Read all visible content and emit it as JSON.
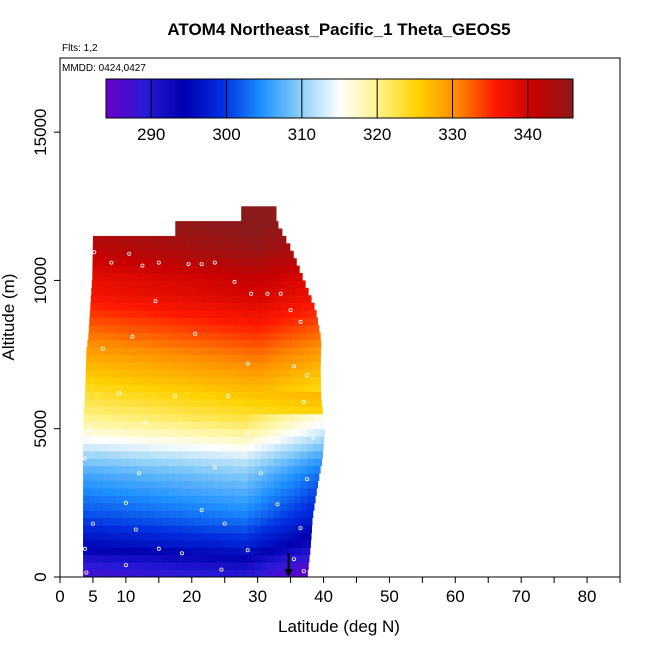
{
  "chart_data": {
    "type": "heatmap",
    "title": "ATOM4 Northeast_Pacific_1 Theta_GEOS5",
    "flights_text": "Flts: 1,2",
    "dates_text": "MMDD: 0424,0427",
    "xlabel": "Latitude (deg N)",
    "ylabel": "Altitude (m)",
    "xlim": [
      0,
      85
    ],
    "ylim": [
      0,
      17500
    ],
    "x_ticks": [
      0,
      5,
      10,
      20,
      30,
      40,
      50,
      60,
      70,
      80
    ],
    "x_tick_labels": [
      "0",
      "5",
      "10",
      "20",
      "30",
      "40",
      "50",
      "60",
      "70",
      "80"
    ],
    "y_ticks": [
      0,
      5000,
      10000,
      15000
    ],
    "y_tick_labels": [
      "0",
      "5000",
      "10000",
      "15000"
    ],
    "colorbar": {
      "vmin": 284,
      "vmax": 346,
      "ticks": [
        290,
        300,
        310,
        320,
        330,
        340
      ],
      "tick_labels": [
        "290",
        "300",
        "310",
        "320",
        "330",
        "340"
      ],
      "colors": [
        "#6a00c8",
        "#2a1ad8",
        "#0000b0",
        "#0030e0",
        "#1e90ff",
        "#8ccff8",
        "#ffffff",
        "#fff38a",
        "#ffd200",
        "#ff8c00",
        "#ff1a00",
        "#c80000",
        "#8c1a1a"
      ]
    },
    "profiles": [
      {
        "alt": 0,
        "theta": 288
      },
      {
        "alt": 500,
        "theta": 291
      },
      {
        "alt": 1000,
        "theta": 296
      },
      {
        "alt": 1500,
        "theta": 299
      },
      {
        "alt": 2000,
        "theta": 302
      },
      {
        "alt": 2500,
        "theta": 304
      },
      {
        "alt": 3000,
        "theta": 306
      },
      {
        "alt": 3500,
        "theta": 308
      },
      {
        "alt": 4000,
        "theta": 311
      },
      {
        "alt": 4500,
        "theta": 315
      },
      {
        "alt": 5000,
        "theta": 319
      },
      {
        "alt": 5500,
        "theta": 322
      },
      {
        "alt": 6000,
        "theta": 324
      },
      {
        "alt": 6500,
        "theta": 326
      },
      {
        "alt": 7000,
        "theta": 328
      },
      {
        "alt": 7500,
        "theta": 330
      },
      {
        "alt": 8000,
        "theta": 332
      },
      {
        "alt": 8500,
        "theta": 334
      },
      {
        "alt": 9000,
        "theta": 336
      },
      {
        "alt": 9500,
        "theta": 338
      },
      {
        "alt": 10000,
        "theta": 339
      },
      {
        "alt": 10500,
        "theta": 341
      },
      {
        "alt": 11000,
        "theta": 343
      },
      {
        "alt": 11500,
        "theta": 344
      },
      {
        "alt": 12000,
        "theta": 345
      }
    ],
    "north_extent": [
      {
        "alt": 0,
        "lat": 37.5
      },
      {
        "alt": 1000,
        "lat": 38.0
      },
      {
        "alt": 2000,
        "lat": 38.3
      },
      {
        "alt": 3000,
        "lat": 39.0
      },
      {
        "alt": 4000,
        "lat": 39.8
      },
      {
        "alt": 5000,
        "lat": 40.2
      },
      {
        "alt": 6000,
        "lat": 39.6
      },
      {
        "alt": 7000,
        "lat": 39.5
      },
      {
        "alt": 8000,
        "lat": 39.6
      },
      {
        "alt": 9000,
        "lat": 38.8
      },
      {
        "alt": 10000,
        "lat": 37.0
      },
      {
        "alt": 11000,
        "lat": 35.2
      },
      {
        "alt": 12000,
        "lat": 32.8
      },
      {
        "alt": 12450,
        "lat": 32.8
      }
    ],
    "south_extent": [
      {
        "alt": 0,
        "lat": 3.5
      },
      {
        "alt": 5000,
        "lat": 3.5
      },
      {
        "alt": 6000,
        "lat": 3.8
      },
      {
        "alt": 7500,
        "lat": 4.0
      },
      {
        "alt": 8000,
        "lat": 4.3
      },
      {
        "alt": 9000,
        "lat": 4.6
      },
      {
        "alt": 10000,
        "lat": 4.9
      },
      {
        "alt": 11300,
        "lat": 5.0
      }
    ],
    "samples": [
      {
        "lat": 5.2,
        "alt": 10950
      },
      {
        "lat": 7.8,
        "alt": 10600
      },
      {
        "lat": 10.5,
        "alt": 10900
      },
      {
        "lat": 12.5,
        "alt": 10500
      },
      {
        "lat": 15.0,
        "alt": 10600
      },
      {
        "lat": 19.5,
        "alt": 10550
      },
      {
        "lat": 21.5,
        "alt": 10550
      },
      {
        "lat": 23.5,
        "alt": 10600
      },
      {
        "lat": 26.5,
        "alt": 9950
      },
      {
        "lat": 29.0,
        "alt": 9550
      },
      {
        "lat": 31.5,
        "alt": 9550
      },
      {
        "lat": 33.5,
        "alt": 9550
      },
      {
        "lat": 35.0,
        "alt": 9000
      },
      {
        "lat": 36.5,
        "alt": 8600
      },
      {
        "lat": 14.5,
        "alt": 9300
      },
      {
        "lat": 11.0,
        "alt": 8100
      },
      {
        "lat": 20.5,
        "alt": 8200
      },
      {
        "lat": 6.5,
        "alt": 7700
      },
      {
        "lat": 28.5,
        "alt": 7200
      },
      {
        "lat": 35.5,
        "alt": 7100
      },
      {
        "lat": 37.5,
        "alt": 6800
      },
      {
        "lat": 9.0,
        "alt": 6200
      },
      {
        "lat": 17.5,
        "alt": 6100
      },
      {
        "lat": 25.5,
        "alt": 6100
      },
      {
        "lat": 37.0,
        "alt": 5900
      },
      {
        "lat": 4.5,
        "alt": 5000
      },
      {
        "lat": 13.0,
        "alt": 5200
      },
      {
        "lat": 28.5,
        "alt": 4850
      },
      {
        "lat": 34.0,
        "alt": 4850
      },
      {
        "lat": 38.5,
        "alt": 4700
      },
      {
        "lat": 3.8,
        "alt": 4000
      },
      {
        "lat": 12.0,
        "alt": 3500
      },
      {
        "lat": 23.5,
        "alt": 3700
      },
      {
        "lat": 30.5,
        "alt": 3500
      },
      {
        "lat": 37.5,
        "alt": 3300
      },
      {
        "lat": 10.0,
        "alt": 2500
      },
      {
        "lat": 21.5,
        "alt": 2250
      },
      {
        "lat": 33.0,
        "alt": 2450
      },
      {
        "lat": 5.0,
        "alt": 1800
      },
      {
        "lat": 11.5,
        "alt": 1600
      },
      {
        "lat": 25.0,
        "alt": 1800
      },
      {
        "lat": 36.5,
        "alt": 1650
      },
      {
        "lat": 3.8,
        "alt": 950
      },
      {
        "lat": 15.0,
        "alt": 950
      },
      {
        "lat": 28.5,
        "alt": 900
      },
      {
        "lat": 10.0,
        "alt": 400
      },
      {
        "lat": 18.5,
        "alt": 800
      },
      {
        "lat": 24.5,
        "alt": 250
      },
      {
        "lat": 35.5,
        "alt": 600
      },
      {
        "lat": 37.0,
        "alt": 200
      },
      {
        "lat": 4.0,
        "alt": 150
      }
    ],
    "marker": {
      "lat": 34.7,
      "alt_top": 800,
      "alt_bottom": 0
    }
  }
}
